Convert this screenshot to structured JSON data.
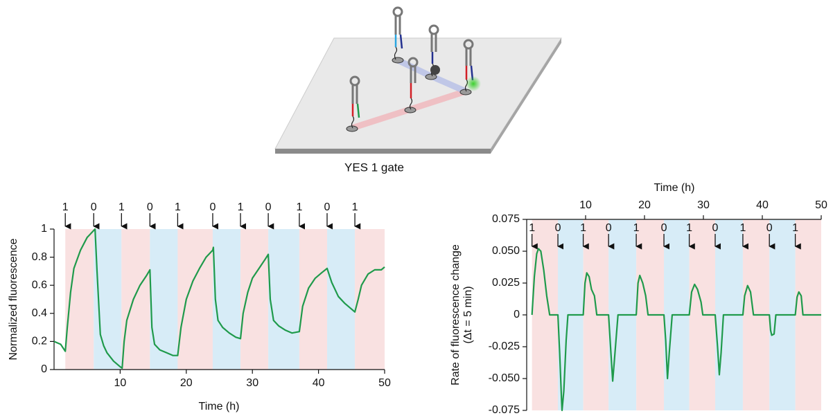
{
  "diagram": {
    "caption": "YES 1 gate"
  },
  "chart_data": [
    {
      "type": "line",
      "xlabel": "Time (h)",
      "ylabel": "Normalized fluorescence",
      "xlim": [
        0,
        50
      ],
      "xticks": [
        10,
        20,
        30,
        40,
        50
      ],
      "ylim": [
        0,
        1
      ],
      "yticks": [
        0,
        0.2,
        0.4,
        0.6,
        0.8,
        1
      ],
      "inputs": [
        1,
        0,
        1,
        0,
        1,
        0,
        1,
        0,
        1,
        0,
        1
      ],
      "input_times": [
        1.7,
        6.0,
        10.2,
        14.5,
        18.7,
        24.0,
        28.2,
        32.4,
        37.1,
        41.3,
        45.5
      ],
      "input_colors": [
        "#d7ecf7",
        "#f9e1e1"
      ],
      "color": "#1f9a4b",
      "x": [
        0,
        1,
        1.7,
        2,
        2.5,
        3,
        4,
        5,
        6,
        6.2,
        6.5,
        7,
        7.5,
        8,
        9,
        10,
        10.3,
        10.6,
        11,
        12,
        13,
        14,
        14.5,
        14.8,
        15.2,
        16,
        17,
        18,
        18.7,
        19.2,
        20,
        21,
        22,
        23,
        24,
        24.1,
        24.4,
        24.8,
        25.5,
        26.5,
        27.5,
        28.2,
        28.6,
        29.3,
        30,
        31,
        32,
        32.4,
        32.7,
        33.2,
        34,
        35,
        36,
        37.1,
        37.6,
        38.5,
        39.5,
        40.5,
        41.3,
        42,
        43,
        44,
        45,
        45.5,
        46,
        46.5,
        47.5,
        48.5,
        49.5,
        50
      ],
      "values": [
        0.2,
        0.18,
        0.13,
        0.3,
        0.55,
        0.72,
        0.85,
        0.94,
        0.99,
        1.0,
        0.7,
        0.25,
        0.17,
        0.12,
        0.06,
        0.02,
        0.01,
        0.2,
        0.35,
        0.5,
        0.6,
        0.67,
        0.71,
        0.3,
        0.18,
        0.14,
        0.12,
        0.1,
        0.1,
        0.3,
        0.5,
        0.63,
        0.72,
        0.8,
        0.85,
        0.87,
        0.5,
        0.35,
        0.3,
        0.26,
        0.23,
        0.22,
        0.4,
        0.55,
        0.65,
        0.72,
        0.79,
        0.82,
        0.5,
        0.35,
        0.31,
        0.28,
        0.26,
        0.27,
        0.45,
        0.58,
        0.65,
        0.69,
        0.72,
        0.62,
        0.52,
        0.47,
        0.43,
        0.41,
        0.5,
        0.6,
        0.68,
        0.71,
        0.71,
        0.73
      ]
    },
    {
      "type": "line",
      "xlabel": "Time (h)",
      "ylabel": [
        "Rate of fluorescence change",
        "(Δt = 5 min)"
      ],
      "xlim": [
        0,
        50
      ],
      "xticks": [
        10,
        20,
        30,
        40,
        50
      ],
      "ylim": [
        -0.075,
        0.075
      ],
      "yticks": [
        0.075,
        {
          "value": 0.05,
          "label": "0.050"
        },
        0.025,
        0,
        -0.025,
        {
          "value": -0.05,
          "label": "-0.050"
        },
        -0.075
      ],
      "inputs": [
        1,
        0,
        1,
        0,
        1,
        0,
        1,
        0,
        1,
        0,
        1
      ],
      "input_times": [
        0.9,
        5.3,
        9.6,
        13.9,
        18.6,
        23.3,
        27.6,
        32.0,
        36.7,
        41.2,
        45.6
      ],
      "input_colors": [
        "#d7ecf7",
        "#f9e1e1"
      ],
      "color": "#1f9a4b",
      "x": [
        0.9,
        1.3,
        1.7,
        2.0,
        2.4,
        2.9,
        3.4,
        3.9,
        5.3,
        5.6,
        5.9,
        6.0,
        6.3,
        6.7,
        7.0,
        9.6,
        9.9,
        10.2,
        10.6,
        11.0,
        11.5,
        11.9,
        13.9,
        14.3,
        14.6,
        14.9,
        15.5,
        18.6,
        18.9,
        19.2,
        19.7,
        20.2,
        20.6,
        23.3,
        23.6,
        23.9,
        24.2,
        24.7,
        27.6,
        28.0,
        28.5,
        29.0,
        29.6,
        29.9,
        32.0,
        32.4,
        32.7,
        33.0,
        33.4,
        36.7,
        37.0,
        37.5,
        38.0,
        38.5,
        41.2,
        41.4,
        41.6,
        42.0,
        42.3,
        45.6,
        45.9,
        46.2,
        46.6,
        46.9,
        50
      ],
      "values": [
        0,
        0.03,
        0.048,
        0.052,
        0.05,
        0.035,
        0.015,
        0,
        0,
        -0.03,
        -0.065,
        -0.075,
        -0.06,
        -0.02,
        0,
        0,
        0.025,
        0.033,
        0.03,
        0.02,
        0.015,
        0,
        0,
        -0.03,
        -0.052,
        -0.035,
        0,
        0,
        0.025,
        0.031,
        0.025,
        0.015,
        0,
        0,
        -0.02,
        -0.05,
        -0.03,
        0,
        0,
        0.018,
        0.024,
        0.02,
        0.01,
        0,
        0,
        -0.025,
        -0.047,
        -0.03,
        0,
        0,
        0.015,
        0.023,
        0.018,
        0,
        0,
        -0.012,
        -0.016,
        -0.015,
        0,
        0,
        0.014,
        0.018,
        0.015,
        0,
        0
      ]
    }
  ]
}
